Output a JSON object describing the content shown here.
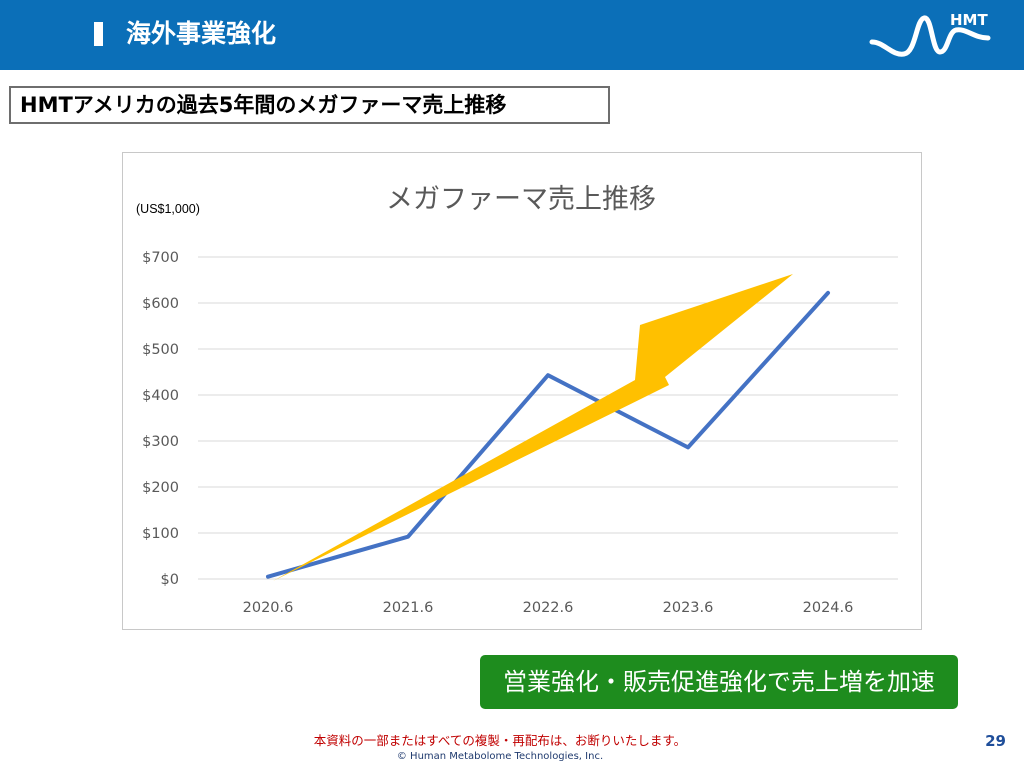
{
  "header": {
    "title": "海外事業強化",
    "logo_text": "HMT",
    "color": "#0b6fb8"
  },
  "slide": {
    "heading": "HMTアメリカの過去5年間のメガファーマ売上推移"
  },
  "chart_data": {
    "type": "line",
    "title": "メガファーマ売上推移",
    "unit_label": "(US$1,000)",
    "categories": [
      "2020.6",
      "2021.6",
      "2022.6",
      "2023.6",
      "2024.6"
    ],
    "values": [
      5,
      92,
      443,
      286,
      622
    ],
    "ylim": [
      0,
      700
    ],
    "y_ticks": [
      0,
      100,
      200,
      300,
      400,
      500,
      600,
      700
    ],
    "y_tick_labels": [
      "$0",
      "$100",
      "$200",
      "$300",
      "$400",
      "$500",
      "$600",
      "$700"
    ],
    "grid": true,
    "legend": "none",
    "line_color": "#4472c4",
    "arrow_color": "#ffc000"
  },
  "callout": {
    "text": "営業強化・販売促進強化で売上増を加速",
    "color": "#1e8c1e"
  },
  "footer": {
    "notice": "本資料の一部またはすべての複製・再配布は、お断りいたします。",
    "copyright": "© Human Metabolome Technologies, Inc.",
    "page_number": "29"
  }
}
